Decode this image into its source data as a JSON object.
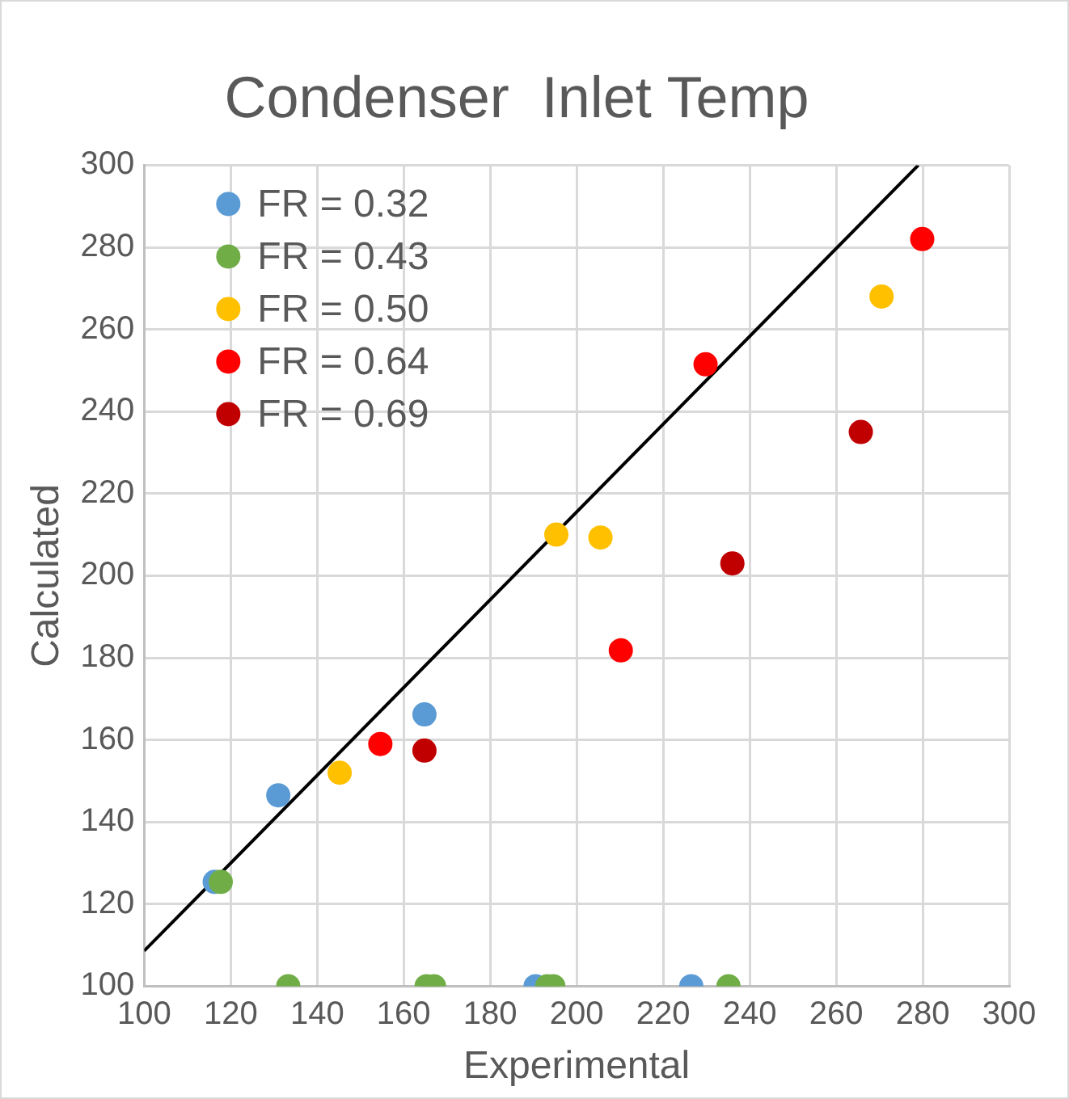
{
  "chart_data": {
    "type": "scatter",
    "title": "Condenser  Inlet Temp",
    "xlabel": "Experimental",
    "ylabel": "Calculated",
    "xlim": [
      100,
      300
    ],
    "xticks": [
      100,
      120,
      140,
      160,
      180,
      200,
      220,
      240,
      260,
      280,
      300
    ],
    "ylim": [
      100,
      300
    ],
    "yticks": [
      100,
      120,
      140,
      160,
      180,
      200,
      220,
      240,
      260,
      280,
      300
    ],
    "grid": true,
    "legend": "top left",
    "marker": "circle",
    "series": [
      {
        "name": "FR = 0.32",
        "color": "#5b9bd5",
        "x": [
          116.3,
          131,
          164.8,
          190.5,
          226.5
        ],
        "values": [
          125.4,
          146.5,
          166.2,
          100,
          100
        ]
      },
      {
        "name": "FR = 0.43",
        "color": "#70ad47",
        "x": [
          117.7,
          133.3,
          165.3,
          167,
          193.2,
          194.6,
          235.1
        ],
        "values": [
          125.4,
          100,
          100,
          100,
          100,
          100,
          100
        ]
      },
      {
        "name": "FR = 0.50",
        "color": "#ffc000",
        "x": [
          145.2,
          195.3,
          205.5,
          270.5
        ],
        "values": [
          152,
          210,
          209.3,
          268
        ]
      },
      {
        "name": "FR = 0.64",
        "color": "#ff0000",
        "x": [
          154.6,
          210.2,
          229.8,
          279.9
        ],
        "values": [
          159,
          181.8,
          251.5,
          282
        ]
      },
      {
        "name": "FR = 0.69",
        "color": "#c00000",
        "x": [
          164.8,
          236,
          265.7
        ],
        "values": [
          157.4,
          203,
          235
        ]
      },
      {
        "type": "line",
        "color": "#000000",
        "x": [
          100,
          279
        ],
        "values": [
          108.6,
          300
        ],
        "marker": "none",
        "line_style": "solid"
      }
    ]
  }
}
